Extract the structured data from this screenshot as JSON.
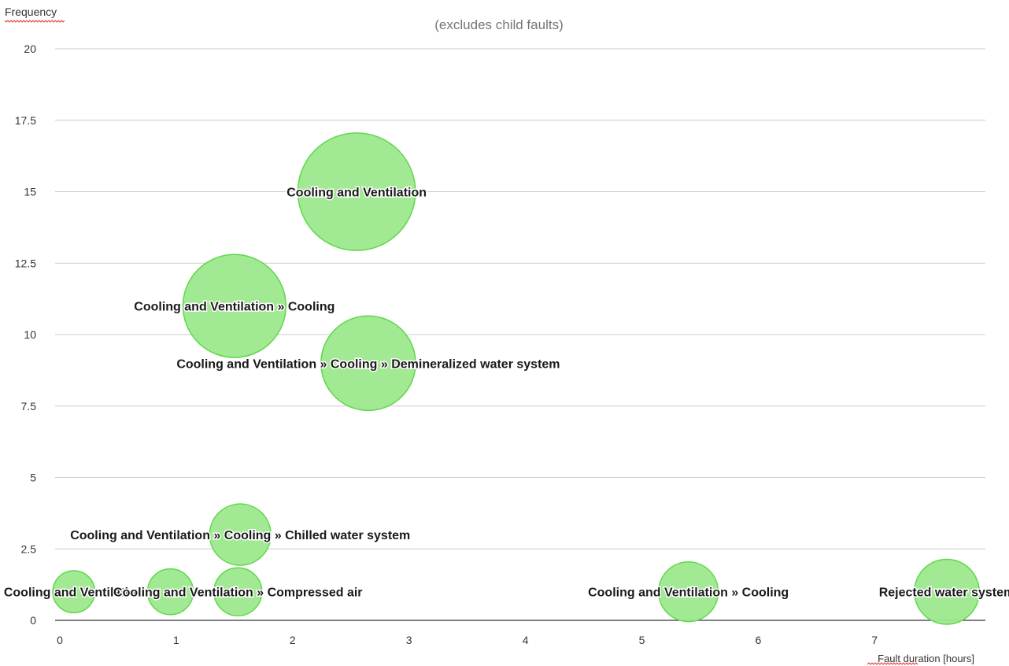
{
  "chart_data": {
    "type": "bubble",
    "subtitle": "(excludes child faults)",
    "xlabel": "Fault duration [hours]",
    "ylabel": "Frequency",
    "xlim": [
      0,
      8
    ],
    "ylim": [
      0,
      20
    ],
    "x_ticks": [
      0,
      1,
      2,
      3,
      4,
      5,
      6,
      7
    ],
    "y_ticks": [
      0,
      2.5,
      5,
      7.5,
      10,
      12.5,
      15,
      17.5,
      20
    ],
    "grid": "horizontal",
    "bubble_color": "#9de88d",
    "bubble_stroke": "#5fd84b",
    "points": [
      {
        "label": "Cooling and Ventilation",
        "x": 2.55,
        "y": 15,
        "size": 15
      },
      {
        "label": "Cooling and Ventilation » Cooling",
        "x": 1.5,
        "y": 11,
        "size": 11
      },
      {
        "label": "Cooling and Ventilation » Cooling » Demineralized water system",
        "x": 2.65,
        "y": 9,
        "size": 9
      },
      {
        "label": "Cooling and Ventilation » Cooling » Chilled water system",
        "x": 1.55,
        "y": 3,
        "size": 3
      },
      {
        "label": "Cooling and Ventilation",
        "x": 0.12,
        "y": 1,
        "size": 1
      },
      {
        "label": "",
        "x": 0.95,
        "y": 1,
        "size": 1.3
      },
      {
        "label": "Cooling and Ventilation » Compressed air",
        "x": 1.53,
        "y": 1,
        "size": 1.5
      },
      {
        "label": "Cooling and Ventilation » Cooling",
        "x": 5.4,
        "y": 1,
        "size": 2.8
      },
      {
        "label": "Rejected water system",
        "x": 7.62,
        "y": 1,
        "size": 3.5
      }
    ]
  }
}
